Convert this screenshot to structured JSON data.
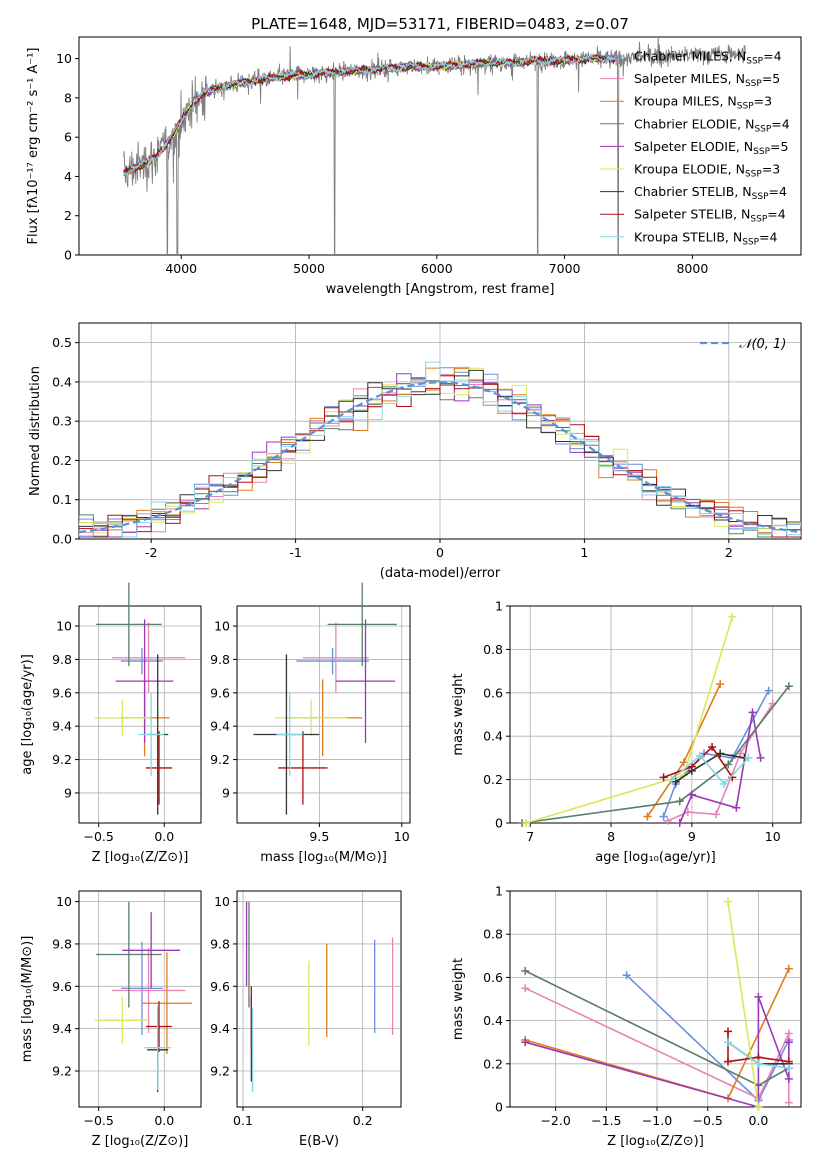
{
  "figure_title": "PLATE=1648, MJD=53171, FIBERID=0483, z=0.07",
  "palette": {
    "Chabrier MILES": "#6a8fde",
    "Salpeter MILES": "#e884b8",
    "Kroupa MILES": "#e07b1c",
    "Chabrier ELODIE": "#5a7d6a",
    "Salpeter ELODIE": "#9a39b8",
    "Kroupa ELODIE": "#d8e85a",
    "Chabrier STELIB": "#333333",
    "Salpeter STELIB": "#b01010",
    "Kroupa STELIB": "#86d6e8",
    "data": "#808080",
    "normal": "#5b8fd8"
  },
  "chart_data": [
    {
      "id": "spectrum",
      "type": "line",
      "title": "PLATE=1648, MJD=53171, FIBERID=0483, z=0.07",
      "xlabel": "wavelength [Angstrom, rest frame]",
      "ylabel": "Flux [fλ10⁻¹⁷ erg cm⁻² s⁻¹ A⁻¹]",
      "xlim": [
        3200,
        8850
      ],
      "ylim": [
        0,
        11.1
      ],
      "xticks": [
        4000,
        5000,
        6000,
        7000,
        8000
      ],
      "yticks": [
        0,
        2,
        4,
        6,
        8,
        10
      ],
      "grid": false,
      "legend_position": "right",
      "legend": [
        {
          "name": "Chabrier MILES",
          "n": "4"
        },
        {
          "name": "Salpeter MILES",
          "n": "5"
        },
        {
          "name": "Kroupa MILES",
          "n": "3"
        },
        {
          "name": "Chabrier ELODIE",
          "n": "4"
        },
        {
          "name": "Salpeter ELODIE",
          "n": "5"
        },
        {
          "name": "Kroupa ELODIE",
          "n": "3"
        },
        {
          "name": "Chabrier STELIB",
          "n": "4"
        },
        {
          "name": "Salpeter STELIB",
          "n": "4"
        },
        {
          "name": "Kroupa STELIB",
          "n": "4"
        }
      ],
      "continuum": {
        "x": [
          3550,
          3700,
          3800,
          3900,
          4000,
          4100,
          4200,
          4400,
          4600,
          4800,
          5000,
          5200,
          5400,
          5600,
          5800,
          6000,
          6200,
          6400,
          6600,
          6800,
          7000,
          7200,
          7400,
          7600,
          7800,
          8000,
          8200,
          8400
        ],
        "y": [
          4.2,
          4.6,
          5.0,
          5.8,
          6.8,
          7.8,
          8.3,
          8.7,
          8.9,
          9.1,
          9.2,
          9.3,
          9.4,
          9.5,
          9.6,
          9.6,
          9.7,
          9.8,
          9.8,
          9.9,
          9.9,
          10.0,
          10.0,
          10.1,
          10.1,
          10.2,
          10.2,
          10.3
        ]
      },
      "model_x_range": [
        3550,
        7400
      ],
      "data_x_range": [
        3550,
        8420
      ],
      "deep_lines_x": [
        3890,
        3970,
        5200,
        6790,
        7420
      ]
    },
    {
      "id": "residuals",
      "type": "histogram",
      "xlabel": "(data-model)/error",
      "ylabel": "Normed distribution",
      "xlim": [
        -2.5,
        2.5
      ],
      "ylim": [
        0,
        0.55
      ],
      "xticks": [
        -2,
        -1,
        0,
        1,
        2
      ],
      "yticks": [
        0.0,
        0.1,
        0.2,
        0.3,
        0.4,
        0.5
      ],
      "grid": true,
      "legend_position": "top-right",
      "legend": [
        {
          "name": "𝒩(0, 1)",
          "style": "dashed"
        }
      ],
      "bin_width": 0.1
    },
    {
      "id": "age_vs_Z",
      "type": "errorbar",
      "xlabel": "Z [log₁₀(Z/Z⊙)]",
      "ylabel": "age  [log₁₀(age/yr)]",
      "xlim": [
        -0.65,
        0.28
      ],
      "ylim": [
        8.82,
        10.12
      ],
      "xticks": [
        -0.5,
        0.0
      ],
      "xticklabels": [
        "−0.5",
        "0.0"
      ],
      "yticks": [
        9.0,
        9.2,
        9.4,
        9.6,
        9.8,
        10.0
      ],
      "grid": true,
      "points": [
        {
          "model": "Chabrier MILES",
          "x": -0.17,
          "xerr": 0.16,
          "y": 9.79,
          "yerr": 0.08
        },
        {
          "model": "Salpeter MILES",
          "x": -0.12,
          "xerr": 0.28,
          "y": 9.81,
          "yerr": 0.21
        },
        {
          "model": "Kroupa MILES",
          "x": -0.15,
          "xerr": 0.19,
          "y": 9.45,
          "yerr": 0.23
        },
        {
          "model": "Chabrier ELODIE",
          "x": -0.27,
          "xerr": 0.25,
          "y": 10.01,
          "yerr": 0.25
        },
        {
          "model": "Salpeter ELODIE",
          "x": -0.15,
          "xerr": 0.22,
          "y": 9.67,
          "yerr": 0.37
        },
        {
          "model": "Kroupa ELODIE",
          "x": -0.32,
          "xerr": 0.21,
          "y": 9.45,
          "yerr": 0.11
        },
        {
          "model": "Chabrier STELIB",
          "x": -0.05,
          "xerr": 0.08,
          "y": 9.35,
          "yerr": 0.48
        },
        {
          "model": "Salpeter STELIB",
          "x": -0.04,
          "xerr": 0.1,
          "y": 9.15,
          "yerr": 0.22
        },
        {
          "model": "Kroupa STELIB",
          "x": -0.1,
          "xerr": 0.1,
          "y": 9.35,
          "yerr": 0.25
        }
      ]
    },
    {
      "id": "age_vs_mass",
      "type": "errorbar",
      "xlabel": "mass [log₁₀(M/M⊙)]",
      "ylabel": "",
      "xlim": [
        9.0,
        10.05
      ],
      "ylim": [
        8.82,
        10.12
      ],
      "xticks": [
        9.5,
        10.0
      ],
      "yticks": [
        9.0,
        9.2,
        9.4,
        9.6,
        9.8,
        10.0
      ],
      "grid": true,
      "points": [
        {
          "model": "Chabrier MILES",
          "x": 9.58,
          "xerr": 0.22,
          "y": 9.79,
          "yerr": 0.08
        },
        {
          "model": "Salpeter MILES",
          "x": 9.6,
          "xerr": 0.2,
          "y": 9.81,
          "yerr": 0.21
        },
        {
          "model": "Kroupa MILES",
          "x": 9.52,
          "xerr": 0.24,
          "y": 9.45,
          "yerr": 0.23
        },
        {
          "model": "Chabrier ELODIE",
          "x": 9.76,
          "xerr": 0.21,
          "y": 10.01,
          "yerr": 0.25
        },
        {
          "model": "Salpeter ELODIE",
          "x": 9.78,
          "xerr": 0.18,
          "y": 9.67,
          "yerr": 0.37
        },
        {
          "model": "Kroupa ELODIE",
          "x": 9.45,
          "xerr": 0.22,
          "y": 9.45,
          "yerr": 0.11
        },
        {
          "model": "Chabrier STELIB",
          "x": 9.3,
          "xerr": 0.2,
          "y": 9.35,
          "yerr": 0.48
        },
        {
          "model": "Salpeter STELIB",
          "x": 9.4,
          "xerr": 0.15,
          "y": 9.15,
          "yerr": 0.22
        },
        {
          "model": "Kroupa STELIB",
          "x": 9.32,
          "xerr": 0.08,
          "y": 9.35,
          "yerr": 0.25
        }
      ]
    },
    {
      "id": "massweight_vs_age",
      "type": "line",
      "xlabel": "age  [log₁₀(age/yr)]",
      "ylabel": "mass weight",
      "xlim": [
        6.75,
        10.35
      ],
      "ylim": [
        0,
        1.0
      ],
      "xticks": [
        7,
        8,
        9,
        10
      ],
      "yticks": [
        0.0,
        0.2,
        0.4,
        0.6,
        0.8,
        1.0
      ],
      "grid": true,
      "series": [
        {
          "model": "Chabrier MILES",
          "x": [
            8.65,
            8.8,
            9.15,
            9.5,
            9.95
          ],
          "y": [
            0.03,
            0.18,
            0.32,
            0.3,
            0.61
          ]
        },
        {
          "model": "Salpeter MILES",
          "x": [
            8.7,
            8.95,
            9.3,
            9.6,
            10.0
          ],
          "y": [
            0.01,
            0.05,
            0.04,
            0.32,
            0.55
          ]
        },
        {
          "model": "Kroupa MILES",
          "x": [
            8.45,
            8.9,
            9.35
          ],
          "y": [
            0.03,
            0.28,
            0.64
          ]
        },
        {
          "model": "Chabrier ELODIE",
          "x": [
            6.9,
            8.85,
            9.45,
            10.2
          ],
          "y": [
            0.0,
            0.1,
            0.27,
            0.63
          ]
        },
        {
          "model": "Salpeter ELODIE",
          "x": [
            8.85,
            9.0,
            9.55,
            9.75,
            9.85
          ],
          "y": [
            0.0,
            0.13,
            0.07,
            0.51,
            0.3
          ]
        },
        {
          "model": "Kroupa ELODIE",
          "x": [
            6.95,
            8.9,
            9.5
          ],
          "y": [
            0.0,
            0.22,
            0.95
          ]
        },
        {
          "model": "Chabrier STELIB",
          "x": [
            8.8,
            9.0,
            9.35,
            9.65
          ],
          "y": [
            0.19,
            0.24,
            0.32,
            0.3
          ]
        },
        {
          "model": "Salpeter STELIB",
          "x": [
            8.65,
            9.0,
            9.25,
            9.5
          ],
          "y": [
            0.21,
            0.26,
            0.35,
            0.21
          ]
        },
        {
          "model": "Kroupa STELIB",
          "x": [
            8.75,
            9.1,
            9.4,
            9.7
          ],
          "y": [
            0.2,
            0.31,
            0.18,
            0.3
          ]
        }
      ]
    },
    {
      "id": "mass_vs_Z",
      "type": "errorbar",
      "xlabel": "Z [log₁₀(Z/Z⊙)]",
      "ylabel": "mass [log₁₀(M/M⊙)]",
      "xlim": [
        -0.65,
        0.28
      ],
      "ylim": [
        9.03,
        10.05
      ],
      "xticks": [
        -0.5,
        0.0
      ],
      "xticklabels": [
        "−0.5",
        "0.0"
      ],
      "yticks": [
        9.2,
        9.4,
        9.6,
        9.8,
        10.0
      ],
      "grid": true,
      "points": [
        {
          "model": "Chabrier MILES",
          "x": -0.17,
          "xerr": 0.16,
          "y": 9.59,
          "yerr": 0.22
        },
        {
          "model": "Salpeter MILES",
          "x": -0.12,
          "xerr": 0.28,
          "y": 9.58,
          "yerr": 0.2
        },
        {
          "model": "Kroupa MILES",
          "x": 0.02,
          "xerr": 0.19,
          "y": 9.52,
          "yerr": 0.24
        },
        {
          "model": "Chabrier ELODIE",
          "x": -0.27,
          "xerr": 0.25,
          "y": 9.75,
          "yerr": 0.25
        },
        {
          "model": "Salpeter ELODIE",
          "x": -0.1,
          "xerr": 0.22,
          "y": 9.77,
          "yerr": 0.18
        },
        {
          "model": "Kroupa ELODIE",
          "x": -0.32,
          "xerr": 0.21,
          "y": 9.44,
          "yerr": 0.11
        },
        {
          "model": "Chabrier STELIB",
          "x": -0.05,
          "xerr": 0.08,
          "y": 9.3,
          "yerr": 0.2
        },
        {
          "model": "Salpeter STELIB",
          "x": -0.04,
          "xerr": 0.1,
          "y": 9.41,
          "yerr": 0.12
        },
        {
          "model": "Kroupa STELIB",
          "x": -0.05,
          "xerr": 0.1,
          "y": 9.31,
          "yerr": 0.2
        }
      ]
    },
    {
      "id": "mass_vs_EBV",
      "type": "errorbar",
      "xlabel": "E(B-V)",
      "ylabel": "",
      "xlim": [
        0.095,
        0.232
      ],
      "ylim": [
        9.03,
        10.05
      ],
      "xticks": [
        0.1,
        0.2
      ],
      "yticks": [
        9.2,
        9.4,
        9.6,
        9.8,
        10.0
      ],
      "grid": true,
      "points": [
        {
          "model": "Chabrier MILES",
          "x": 0.21,
          "xerr": 0.0,
          "y": 9.6,
          "yerr": 0.22
        },
        {
          "model": "Salpeter MILES",
          "x": 0.225,
          "xerr": 0.0,
          "y": 9.6,
          "yerr": 0.23
        },
        {
          "model": "Kroupa MILES",
          "x": 0.17,
          "xerr": 0.0,
          "y": 9.58,
          "yerr": 0.22
        },
        {
          "model": "Chabrier ELODIE",
          "x": 0.105,
          "xerr": 0.0,
          "y": 9.75,
          "yerr": 0.25
        },
        {
          "model": "Salpeter ELODIE",
          "x": 0.103,
          "xerr": 0.0,
          "y": 9.8,
          "yerr": 0.2
        },
        {
          "model": "Kroupa ELODIE",
          "x": 0.155,
          "xerr": 0.0,
          "y": 9.52,
          "yerr": 0.2
        },
        {
          "model": "Chabrier STELIB",
          "x": 0.107,
          "xerr": 0.0,
          "y": 9.35,
          "yerr": 0.2
        },
        {
          "model": "Salpeter STELIB",
          "x": 0.107,
          "xerr": 0.0,
          "y": 9.45,
          "yerr": 0.15
        },
        {
          "model": "Kroupa STELIB",
          "x": 0.108,
          "xerr": 0.0,
          "y": 9.3,
          "yerr": 0.2
        }
      ]
    },
    {
      "id": "massweight_vs_Z",
      "type": "line",
      "xlabel": "Z [log₁₀(Z/Z⊙)]",
      "ylabel": "mass weight",
      "xlim": [
        -2.45,
        0.42
      ],
      "ylim": [
        0,
        1.0
      ],
      "xticks": [
        -2.0,
        -1.5,
        -1.0,
        -0.5,
        0.0
      ],
      "xticklabels": [
        "−2.0",
        "−1.5",
        "−1.0",
        "−0.5",
        "0.0"
      ],
      "yticks": [
        0.0,
        0.2,
        0.4,
        0.6,
        0.8,
        1.0
      ],
      "grid": true,
      "series": [
        {
          "model": "Chabrier MILES",
          "x": [
            -1.3,
            -0.0,
            0.3
          ],
          "y": [
            0.61,
            0.03,
            0.31
          ]
        },
        {
          "model": "Salpeter MILES",
          "x": [
            -2.3,
            0.0,
            0.3,
            0.3
          ],
          "y": [
            0.55,
            0.04,
            0.34,
            0.02
          ]
        },
        {
          "model": "Kroupa MILES",
          "x": [
            -2.3,
            -0.3,
            0.3
          ],
          "y": [
            0.31,
            0.04,
            0.64
          ]
        },
        {
          "model": "Chabrier ELODIE",
          "x": [
            -2.3,
            0.0,
            0.3
          ],
          "y": [
            0.63,
            0.1,
            0.18
          ]
        },
        {
          "model": "Salpeter ELODIE",
          "x": [
            -2.3,
            0.0,
            0.0,
            0.3,
            0.3
          ],
          "y": [
            0.3,
            0.0,
            0.51,
            0.13,
            0.3
          ]
        },
        {
          "model": "Kroupa ELODIE",
          "x": [
            -0.3,
            0.0
          ],
          "y": [
            0.95,
            0.0
          ]
        },
        {
          "model": "Chabrier STELIB",
          "x": [
            -0.3,
            0.0,
            0.3
          ],
          "y": [
            0.3,
            0.2,
            0.2
          ]
        },
        {
          "model": "Salpeter STELIB",
          "x": [
            -0.3,
            -0.3,
            0.0,
            0.3
          ],
          "y": [
            0.35,
            0.21,
            0.23,
            0.21
          ]
        },
        {
          "model": "Kroupa STELIB",
          "x": [
            -0.3,
            0.0,
            0.3
          ],
          "y": [
            0.3,
            0.2,
            0.18
          ]
        }
      ]
    }
  ]
}
